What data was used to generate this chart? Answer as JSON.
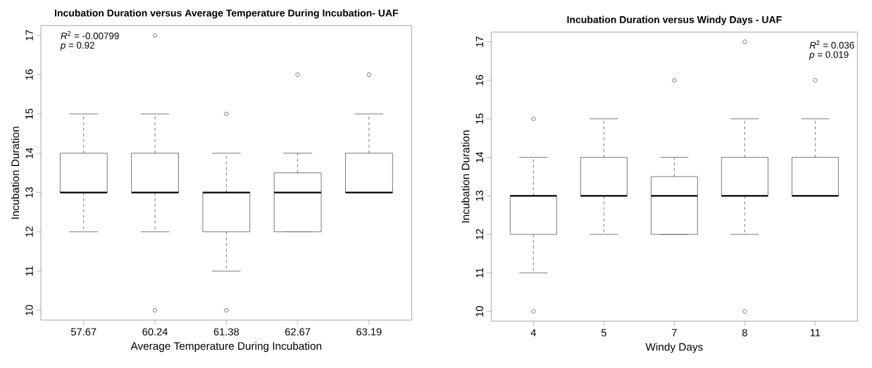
{
  "chart_data": [
    {
      "type": "box",
      "title": "Incubation Duration versus Average Temperature During Incubation- UAF",
      "xlabel": "Average Temperature During Incubation",
      "ylabel": "Incubation Duration",
      "categories": [
        "57.67",
        "60.24",
        "61.38",
        "62.67",
        "63.19"
      ],
      "boxes": [
        {
          "low": 12,
          "q1": 13,
          "median": 13,
          "q3": 14,
          "high": 15
        },
        {
          "low": 12,
          "q1": 13,
          "median": 13,
          "q3": 14,
          "high": 15,
          "outliers": [
            17,
            10
          ]
        },
        {
          "low": 11,
          "q1": 12,
          "median": 13,
          "q3": 13,
          "high": 14,
          "outliers": [
            15,
            10
          ]
        },
        {
          "low": 12,
          "q1": 12,
          "median": 13,
          "q3": 13.5,
          "high": 14,
          "outliers": [
            16
          ]
        },
        {
          "low": 13,
          "q1": 13,
          "median": 13,
          "q3": 14,
          "high": 15,
          "outliers": [
            16
          ]
        }
      ],
      "ylim": [
        9.75,
        17.25
      ],
      "yticks": [
        10,
        11,
        12,
        13,
        14,
        15,
        16,
        17
      ],
      "grid": false,
      "annotations": [
        "*R*$^{2}$ = -0.00799",
        "*p* = 0.92"
      ]
    },
    {
      "type": "box",
      "title": "Incubation Duration versus Windy Days - UAF",
      "xlabel": "Windy Days",
      "ylabel": "Incubation Duration",
      "categories": [
        "4",
        "5",
        "7",
        "8",
        "11"
      ],
      "boxes": [
        {
          "low": 11,
          "q1": 12,
          "median": 13,
          "q3": 13,
          "high": 14,
          "outliers": [
            15,
            10
          ]
        },
        {
          "low": 12,
          "q1": 13,
          "median": 13,
          "q3": 14,
          "high": 15
        },
        {
          "low": 12,
          "q1": 12,
          "median": 13,
          "q3": 13.5,
          "high": 14,
          "outliers": [
            16
          ]
        },
        {
          "low": 12,
          "q1": 13,
          "median": 13,
          "q3": 14,
          "high": 15,
          "outliers": [
            17,
            10
          ]
        },
        {
          "low": 13,
          "q1": 13,
          "median": 13,
          "q3": 14,
          "high": 15,
          "outliers": [
            16
          ]
        }
      ],
      "ylim": [
        9.75,
        17.25
      ],
      "yticks": [
        10,
        11,
        12,
        13,
        14,
        15,
        16,
        17
      ],
      "grid": false,
      "annotations": [
        "*R*$^{2}$ = 0.036",
        "*p* = 0.019"
      ]
    }
  ]
}
